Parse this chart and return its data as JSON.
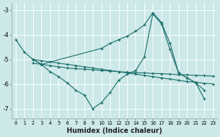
{
  "xlabel": "Humidex (Indice chaleur)",
  "ylabel": "",
  "bg_color": "#cce8e8",
  "line_color": "#1a6e6a",
  "xlim": [
    -0.5,
    23.5
  ],
  "ylim": [
    -7.4,
    -2.7
  ],
  "xticks": [
    0,
    1,
    2,
    3,
    4,
    5,
    6,
    7,
    8,
    9,
    10,
    11,
    12,
    13,
    14,
    15,
    16,
    17,
    18,
    19,
    20,
    21,
    22,
    23
  ],
  "yticks": [
    -7,
    -6,
    -5,
    -4,
    -3
  ],
  "series": [
    {
      "x": [
        0,
        1,
        2,
        3,
        4,
        5,
        6,
        7,
        8,
        9,
        10,
        11,
        12,
        13,
        14,
        15,
        16,
        17,
        18,
        19,
        20,
        21,
        22
      ],
      "y": [
        -4.2,
        -4.7,
        -5.0,
        -5.2,
        -5.5,
        -5.7,
        -5.95,
        -6.25,
        -6.45,
        -7.0,
        -6.75,
        -6.35,
        -5.85,
        -5.6,
        -5.45,
        -4.9,
        -3.15,
        -3.55,
        -4.6,
        -5.55,
        -5.75,
        -5.95,
        -6.25
      ]
    },
    {
      "x": [
        2,
        3,
        4,
        5,
        6,
        7,
        8,
        9,
        10,
        11,
        12,
        13,
        14,
        15,
        16,
        17,
        18,
        19,
        20,
        21,
        22,
        23
      ],
      "y": [
        -5.0,
        -5.05,
        -5.1,
        -5.15,
        -5.2,
        -5.25,
        -5.3,
        -5.35,
        -5.4,
        -5.45,
        -5.5,
        -5.55,
        -5.6,
        -5.65,
        -5.7,
        -5.75,
        -5.8,
        -5.85,
        -5.9,
        -5.93,
        -5.97,
        -6.0
      ]
    },
    {
      "x": [
        2,
        3,
        4,
        5,
        6,
        7,
        8,
        9,
        10,
        11,
        12,
        13,
        14,
        15,
        16,
        17,
        18,
        19,
        20,
        21,
        22,
        23
      ],
      "y": [
        -5.15,
        -5.2,
        -5.25,
        -5.3,
        -5.35,
        -5.37,
        -5.4,
        -5.42,
        -5.45,
        -5.47,
        -5.5,
        -5.52,
        -5.54,
        -5.55,
        -5.57,
        -5.58,
        -5.6,
        -5.62,
        -5.63,
        -5.65,
        -5.66,
        -5.68
      ]
    },
    {
      "x": [
        2,
        3,
        10,
        11,
        12,
        13,
        14,
        15,
        16,
        17,
        18,
        19,
        20,
        21,
        22
      ],
      "y": [
        -5.0,
        -5.2,
        -4.55,
        -4.35,
        -4.2,
        -4.05,
        -3.85,
        -3.6,
        -3.1,
        -3.5,
        -4.35,
        -5.55,
        -5.75,
        -5.95,
        -6.6
      ]
    }
  ]
}
